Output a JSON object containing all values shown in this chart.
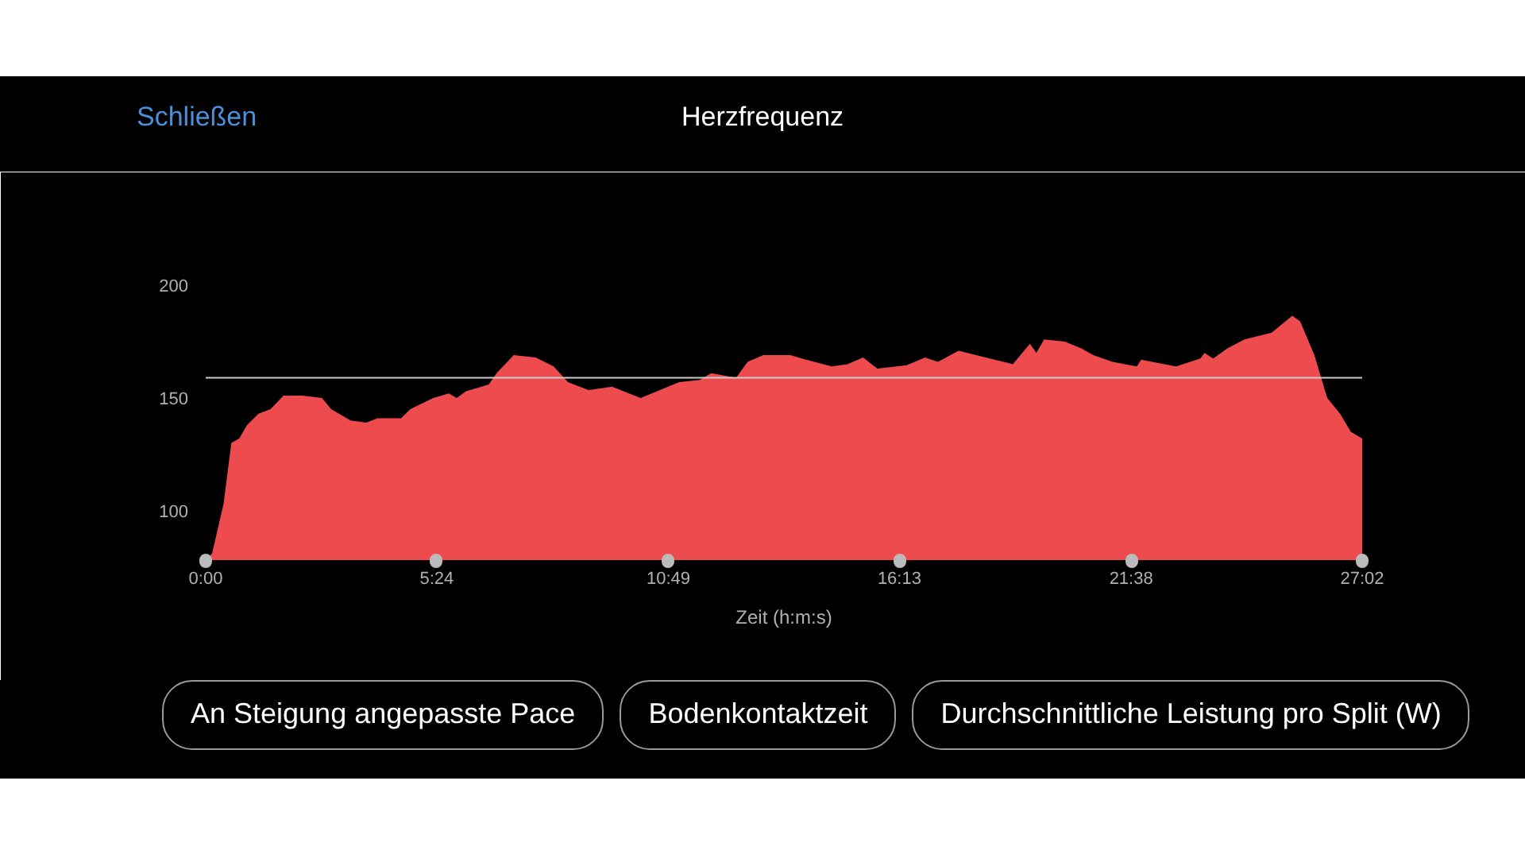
{
  "chart_data": {
    "type": "area",
    "title": "Herzfrequenz",
    "xlabel": "Zeit (h:m:s)",
    "x": [
      0,
      2,
      9,
      25,
      36,
      47,
      58,
      74,
      91,
      109,
      136,
      163,
      176,
      203,
      225,
      241,
      274,
      287,
      319,
      341,
      352,
      365,
      397,
      408,
      432,
      463,
      488,
      508,
      537,
      570,
      610,
      664,
      693,
      709,
      744,
      760,
      782,
      820,
      842,
      878,
      900,
      922,
      942,
      983,
      1009,
      1027,
      1056,
      1094,
      1132,
      1156,
      1165,
      1176,
      1205,
      1228,
      1245,
      1272,
      1306,
      1312,
      1361,
      1395,
      1401,
      1413,
      1433,
      1457,
      1495,
      1524,
      1535,
      1555,
      1573,
      1591,
      1606,
      1622
    ],
    "series": [
      {
        "color": "#ee4b4e",
        "values": [
          78,
          78.4,
          81,
          103,
          130,
          132,
          138,
          143,
          145,
          151,
          151,
          150,
          145,
          140,
          139,
          141,
          141,
          145,
          150,
          152,
          150,
          153,
          156,
          161,
          169,
          168,
          164,
          157,
          153.5,
          155,
          150,
          157,
          158,
          161,
          159,
          166,
          169,
          169,
          167,
          164,
          165,
          168,
          163,
          164.5,
          168,
          166,
          171,
          168,
          165,
          174,
          170,
          176,
          175,
          172,
          169,
          166,
          164,
          167,
          164,
          167.5,
          170,
          167.5,
          172,
          176,
          179,
          186.5,
          184,
          169,
          150,
          143,
          135,
          132
        ]
      }
    ],
    "xlim": [
      0,
      1622
    ],
    "ylim": [
      78,
      205
    ],
    "xticks": [
      {
        "value": 0,
        "label": "0:00"
      },
      {
        "value": 324,
        "label": "5:24"
      },
      {
        "value": 649,
        "label": "10:49"
      },
      {
        "value": 973,
        "label": "16:13"
      },
      {
        "value": 1298,
        "label": "21:38"
      },
      {
        "value": 1622,
        "label": "27:02"
      }
    ],
    "yticks": [
      100,
      150,
      200
    ],
    "ref_lines": [
      {
        "axis": "y",
        "value": 159,
        "color": "#cccccc"
      }
    ],
    "grid": false,
    "annotations": [
      "Schließen",
      "An Steigung angepasste Pace",
      "Bodenkontaktzeit",
      "Durchschnittliche Leistung pro Split (W)"
    ]
  }
}
